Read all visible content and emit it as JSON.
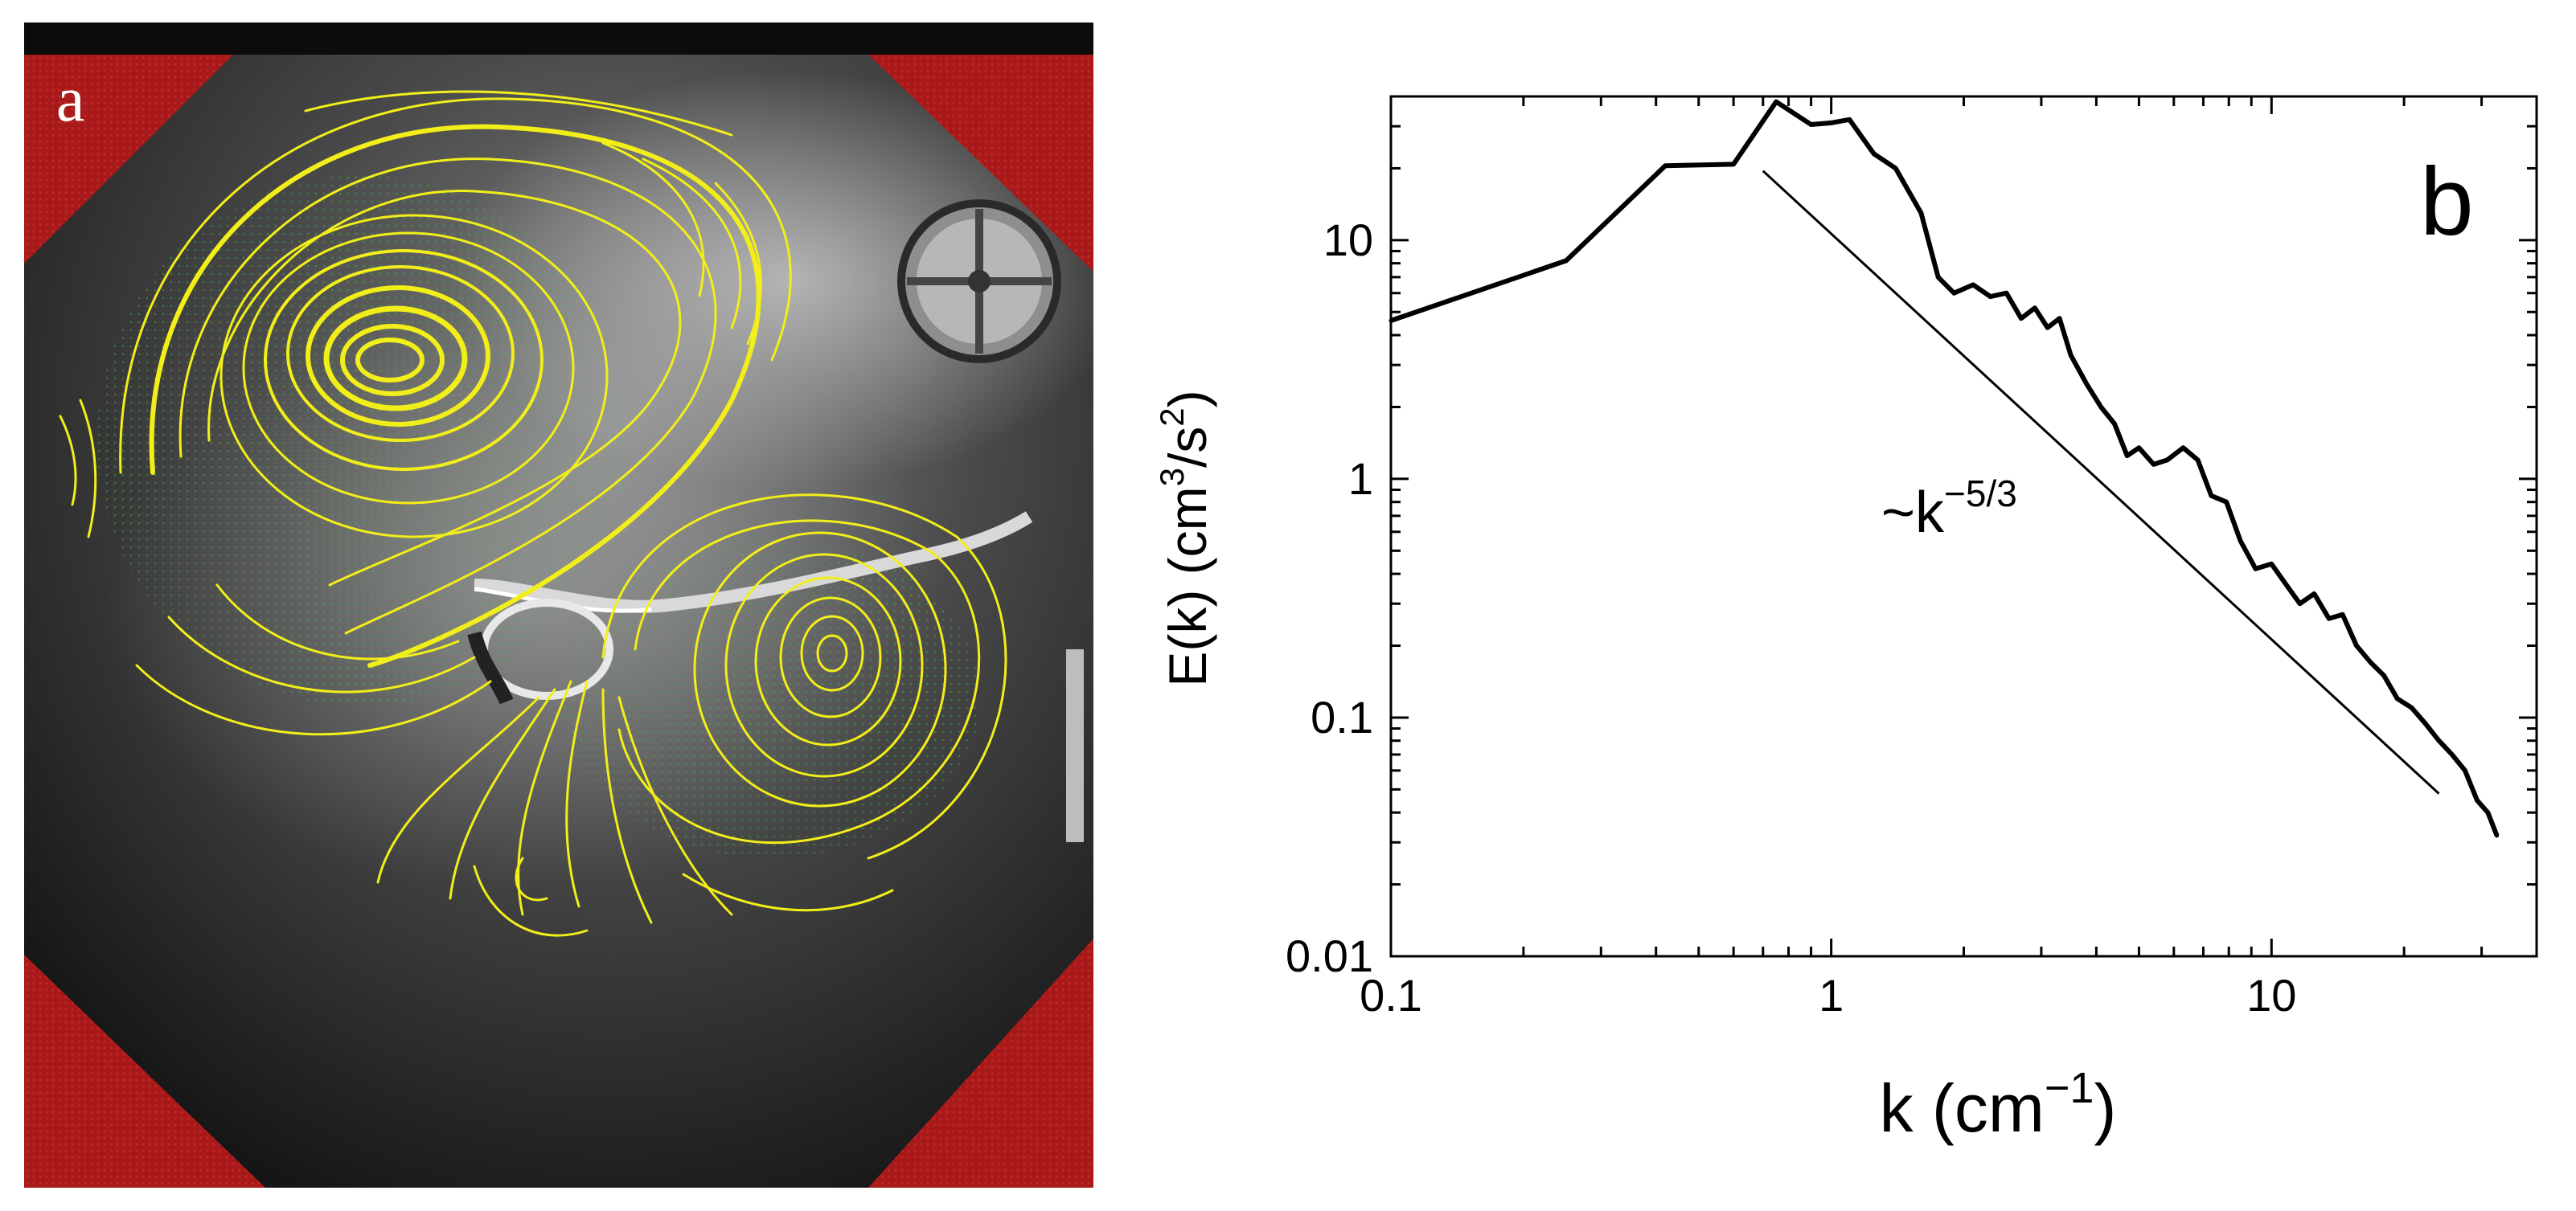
{
  "panel_a": {
    "label": "a",
    "colors": {
      "corner": "#b01c1c",
      "streamline": "#f2ee1a",
      "vector": "#37c23a"
    }
  },
  "panel_b": {
    "label": "b"
  },
  "chart_data": {
    "type": "line",
    "xscale": "log",
    "yscale": "log",
    "xlim": [
      0.1,
      40
    ],
    "ylim": [
      0.01,
      40
    ],
    "xticks": [
      "0.1",
      "1",
      "10"
    ],
    "yticks": [
      "0.01",
      "0.1",
      "1",
      "10"
    ],
    "xlabel_base": "k (cm",
    "xlabel_sup": "−1",
    "xlabel_end": ")",
    "ylabel_a": "E(k) (cm",
    "ylabel_sup1": "3",
    "ylabel_b": "/s",
    "ylabel_sup2": "2",
    "ylabel_c": ")",
    "grid": false,
    "annotation_base": "~k",
    "annotation_sup": "−5/3",
    "reference_line": {
      "x": [
        0.7,
        24
      ],
      "y": [
        19.5,
        0.048
      ]
    },
    "series": [
      {
        "x": [
          0.1,
          0.25,
          0.42,
          0.6,
          0.75,
          0.9,
          1.0,
          1.1,
          1.25,
          1.4,
          1.6,
          1.75,
          1.9,
          2.1,
          2.3,
          2.5,
          2.7,
          2.9,
          3.1,
          3.3,
          3.5,
          3.8,
          4.1,
          4.4,
          4.7,
          5.0,
          5.4,
          5.8,
          6.3,
          6.8,
          7.3,
          7.9,
          8.5,
          9.2,
          10.0,
          10.8,
          11.6,
          12.5,
          13.5,
          14.5,
          15.6,
          16.8,
          18.0,
          19.3,
          20.8,
          22.3,
          24.0,
          25.7,
          27.5,
          29.3,
          31.0,
          32.5
        ],
        "y": [
          4.6,
          8.2,
          20.5,
          20.8,
          38.0,
          30.5,
          31.0,
          32.0,
          23.0,
          20.0,
          13.0,
          7.0,
          6.0,
          6.5,
          5.8,
          6.0,
          4.7,
          5.2,
          4.3,
          4.7,
          3.3,
          2.5,
          2.0,
          1.7,
          1.25,
          1.35,
          1.15,
          1.2,
          1.35,
          1.2,
          0.85,
          0.8,
          0.55,
          0.42,
          0.44,
          0.36,
          0.3,
          0.33,
          0.26,
          0.27,
          0.2,
          0.17,
          0.15,
          0.12,
          0.11,
          0.095,
          0.08,
          0.07,
          0.06,
          0.045,
          0.04,
          0.032
        ]
      }
    ]
  }
}
